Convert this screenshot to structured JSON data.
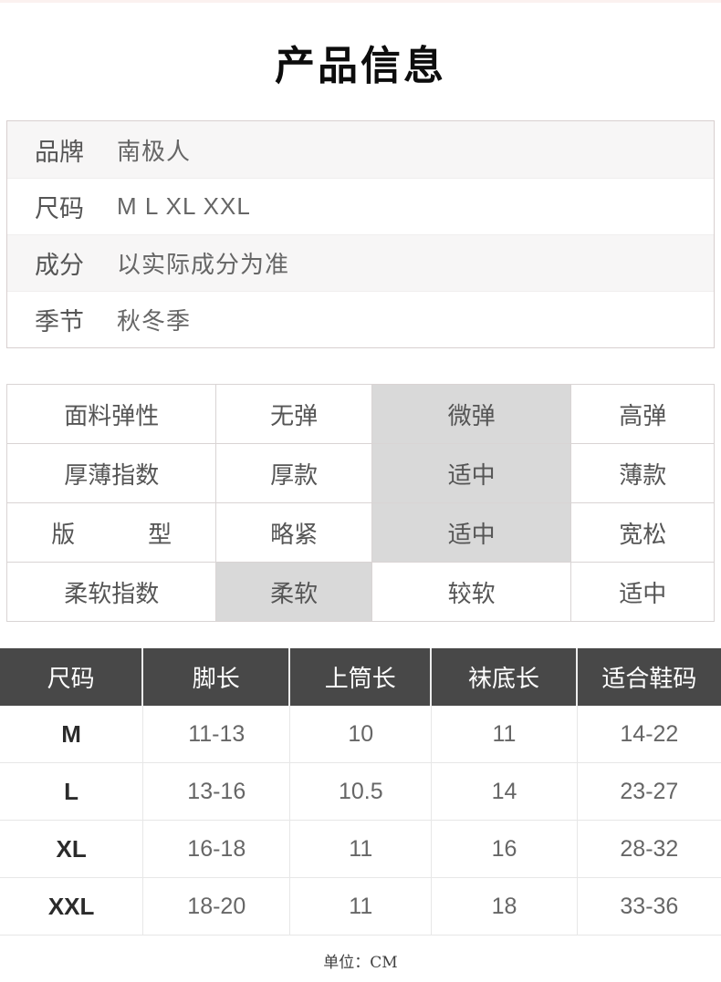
{
  "page": {
    "title": "产品信息",
    "unit_note": "单位：CM"
  },
  "colors": {
    "top_strip": "#fbf1ef",
    "info_row_alt_bg": "#f7f6f6",
    "attr_selected_bg": "#d9d9d9",
    "size_header_bg": "#484848",
    "size_header_text": "#ffffff"
  },
  "product_info": {
    "rows": [
      {
        "label": "品牌",
        "value": "南极人"
      },
      {
        "label": "尺码",
        "value": "M L XL XXL"
      },
      {
        "label": "成分",
        "value": "以实际成分为准"
      },
      {
        "label": "季节",
        "value": "秋冬季"
      }
    ]
  },
  "attributes": {
    "rows": [
      {
        "label": "面料弹性",
        "options": [
          "无弹",
          "微弹",
          "高弹"
        ],
        "selected_index": 1
      },
      {
        "label": "厚薄指数",
        "options": [
          "厚款",
          "适中",
          "薄款"
        ],
        "selected_index": 1
      },
      {
        "label": "版型",
        "options": [
          "略紧",
          "适中",
          "宽松"
        ],
        "selected_index": 1
      },
      {
        "label": "柔软指数",
        "options": [
          "柔软",
          "较软",
          "适中"
        ],
        "selected_index": 0
      }
    ]
  },
  "size_chart": {
    "headers": [
      "尺码",
      "脚长",
      "上筒长",
      "袜底长",
      "适合鞋码"
    ],
    "rows": [
      {
        "size": "M",
        "values": [
          "11-13",
          "10",
          "11",
          "14-22"
        ]
      },
      {
        "size": "L",
        "values": [
          "13-16",
          "10.5",
          "14",
          "23-27"
        ]
      },
      {
        "size": "XL",
        "values": [
          "16-18",
          "11",
          "16",
          "28-32"
        ]
      },
      {
        "size": "XXL",
        "values": [
          "18-20",
          "11",
          "18",
          "33-36"
        ]
      }
    ]
  }
}
